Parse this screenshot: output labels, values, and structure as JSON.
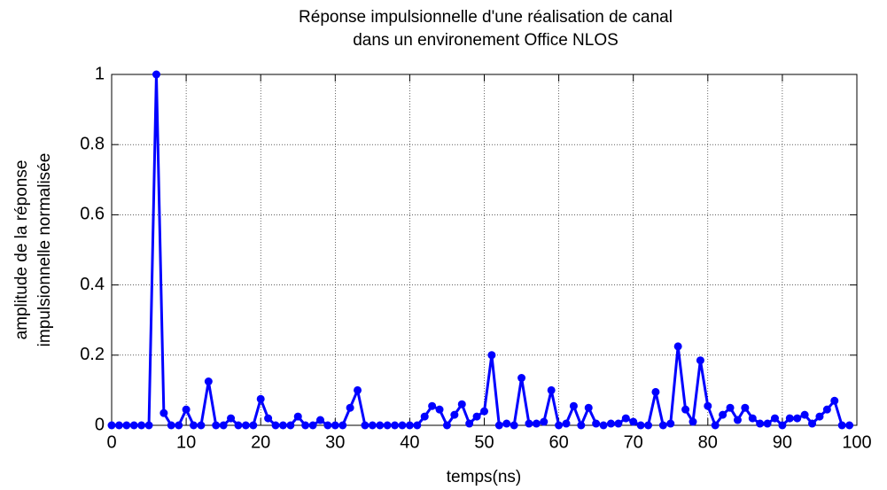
{
  "chart_data": {
    "type": "line",
    "title": [
      "Réponse impulsionnelle d'une réalisation de canal",
      "dans un environement Office NLOS"
    ],
    "xlabel": "temps(ns)",
    "ylabel": [
      "amplitude de la réponse",
      "impulsionnelle normalisée"
    ],
    "x": [
      0,
      1,
      2,
      3,
      4,
      5,
      6,
      7,
      8,
      9,
      10,
      11,
      12,
      13,
      14,
      15,
      16,
      17,
      18,
      19,
      20,
      21,
      22,
      23,
      24,
      25,
      26,
      27,
      28,
      29,
      30,
      31,
      32,
      33,
      34,
      35,
      36,
      37,
      38,
      39,
      40,
      41,
      42,
      43,
      44,
      45,
      46,
      47,
      48,
      49,
      50,
      51,
      52,
      53,
      54,
      55,
      56,
      57,
      58,
      59,
      60,
      61,
      62,
      63,
      64,
      65,
      66,
      67,
      68,
      69,
      70,
      71,
      72,
      73,
      74,
      75,
      76,
      77,
      78,
      79,
      80,
      81,
      82,
      83,
      84,
      85,
      86,
      87,
      88,
      89,
      90,
      91,
      92,
      93,
      94,
      95,
      96,
      97,
      98,
      99
    ],
    "series": [
      {
        "color": "#0000ff",
        "values": [
          0,
          0,
          0,
          0,
          0,
          0,
          1,
          0.035,
          0,
          0,
          0.045,
          0,
          0,
          0.125,
          0,
          0,
          0.02,
          0,
          0,
          0,
          0.075,
          0.02,
          0,
          0,
          0,
          0.025,
          0,
          0,
          0.015,
          0,
          0,
          0,
          0.05,
          0.1,
          0,
          0,
          0,
          0,
          0,
          0,
          0,
          0,
          0.025,
          0.055,
          0.045,
          0,
          0.03,
          0.06,
          0.005,
          0.025,
          0.04,
          0.2,
          0,
          0.005,
          0,
          0.135,
          0.005,
          0.005,
          0.01,
          0.1,
          0,
          0.005,
          0.055,
          0,
          0.05,
          0.005,
          0,
          0.005,
          0.005,
          0.02,
          0.01,
          0,
          0,
          0.095,
          0,
          0.005,
          0.225,
          0.045,
          0.01,
          0.185,
          0.055,
          0,
          0.03,
          0.05,
          0.015,
          0.05,
          0.02,
          0.005,
          0.005,
          0.02,
          0,
          0.02,
          0.02,
          0.03,
          0.005,
          0.025,
          0.045,
          0.07,
          0,
          0
        ]
      }
    ],
    "xlim": [
      0,
      100
    ],
    "xticks": [
      0,
      10,
      20,
      30,
      40,
      50,
      60,
      70,
      80,
      90,
      100
    ],
    "ylim": [
      0,
      1
    ],
    "yticks": [
      0,
      0.2,
      0.4,
      0.6,
      0.8,
      1
    ],
    "grid": true
  }
}
